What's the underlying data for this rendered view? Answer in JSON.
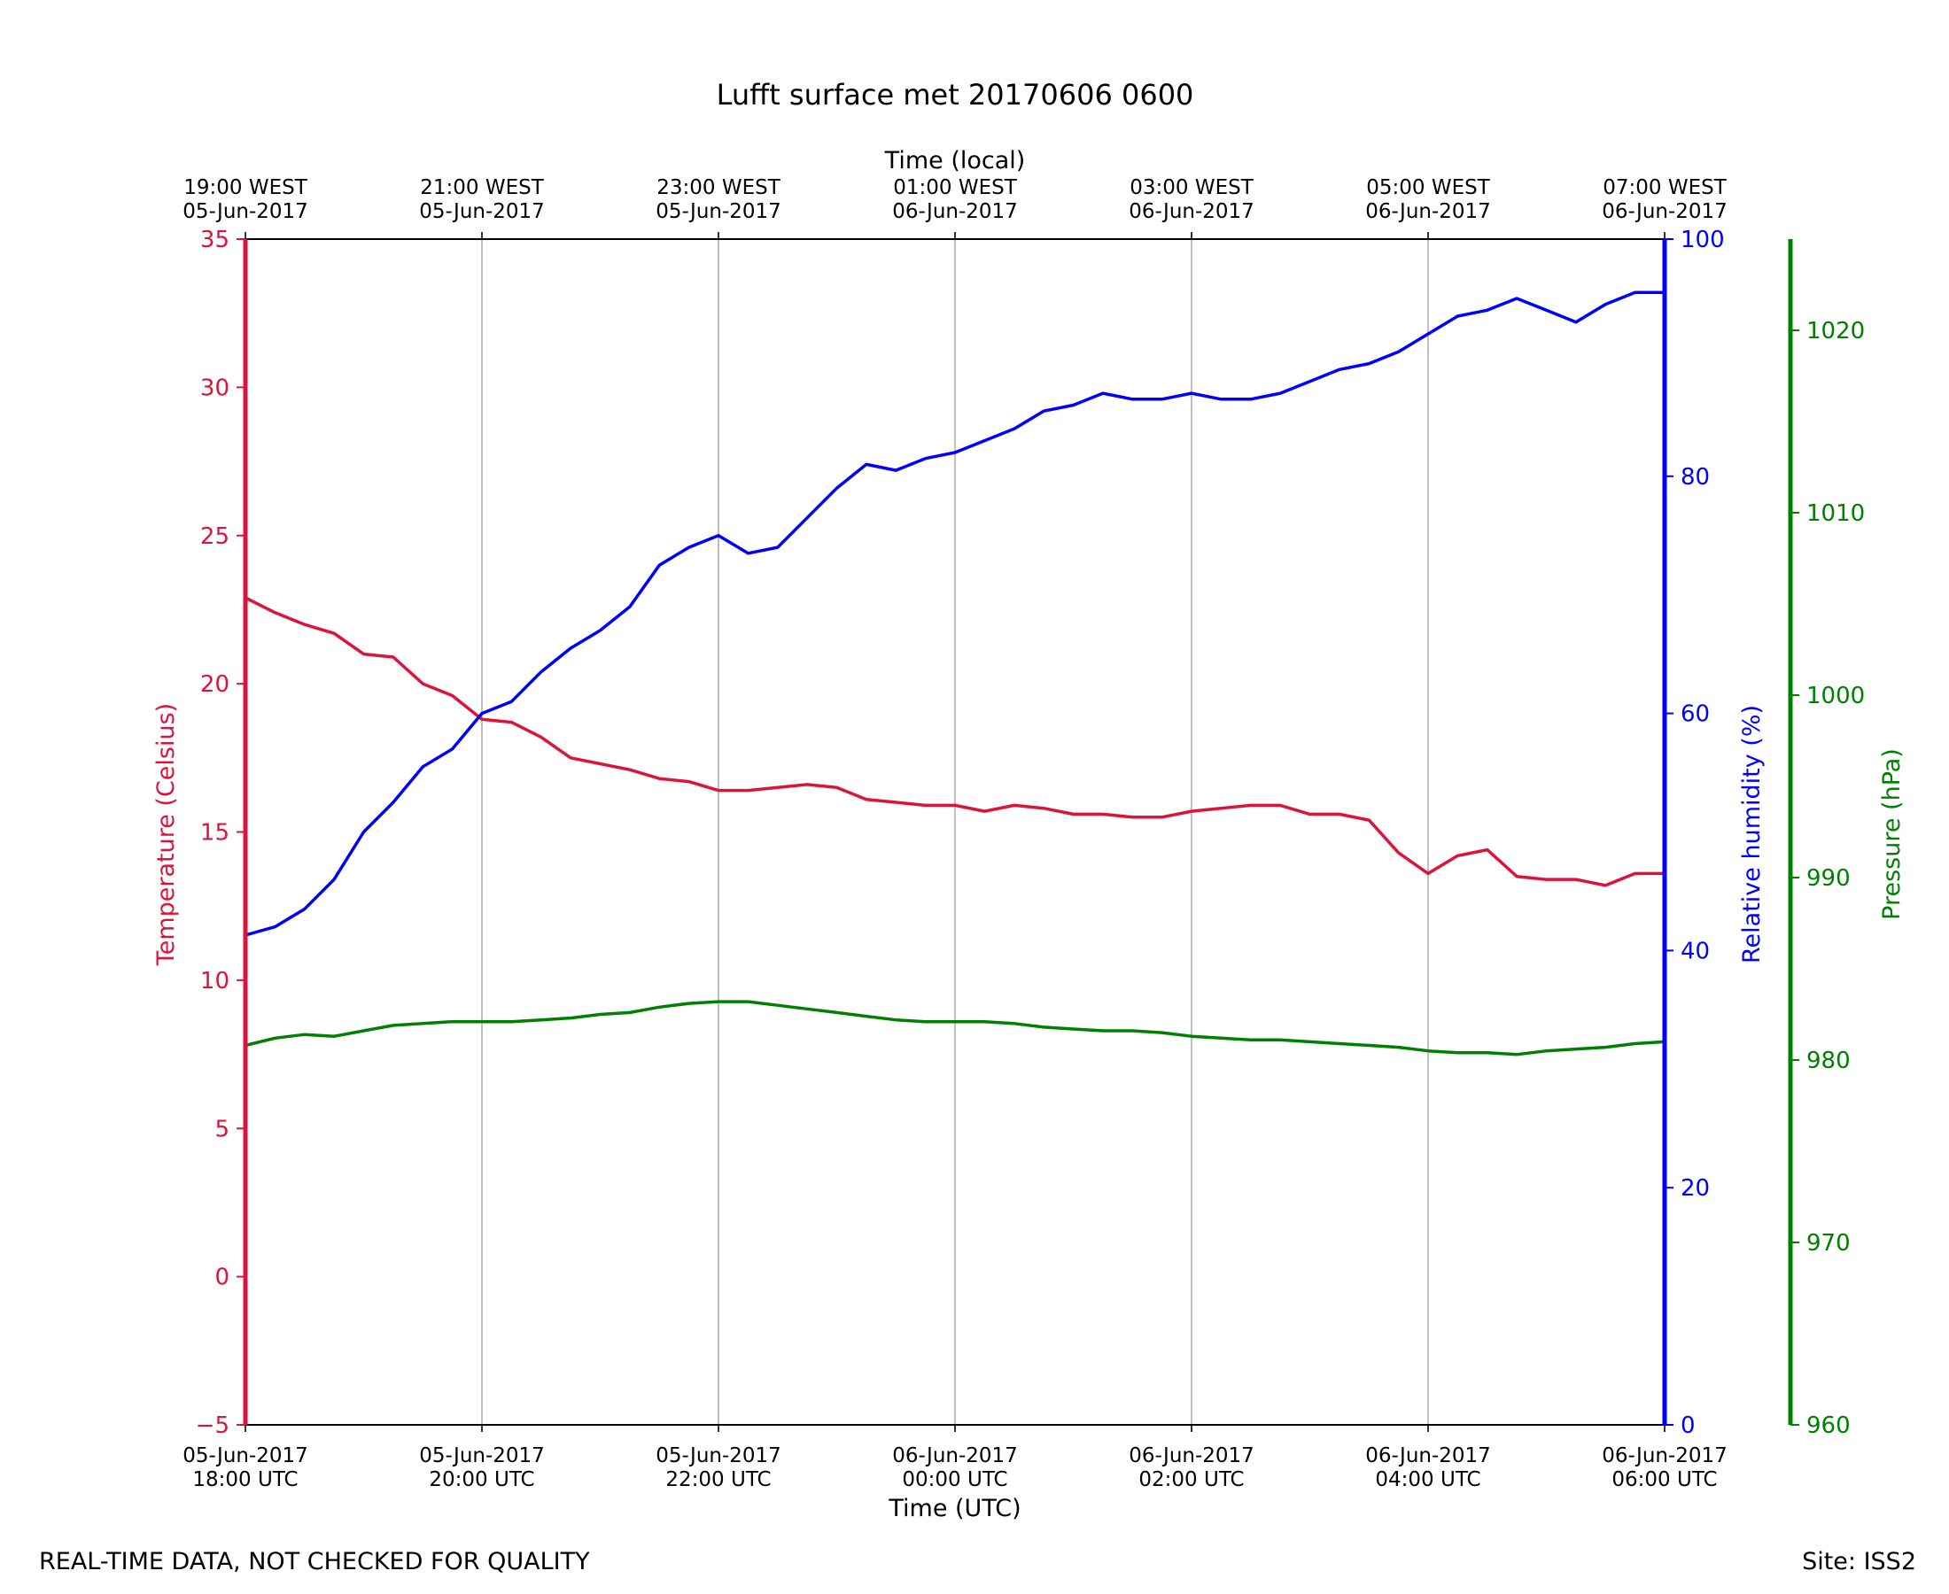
{
  "chart_data": {
    "type": "line",
    "title": "Lufft surface met 20170606 0600",
    "top_axis_label": "Time (local)",
    "xlabel": "Time (UTC)",
    "ylabel_left": "Temperature (Celsius)",
    "ylabel_right": "Relative humidity (%)",
    "ylabel_right2": "Pressure (hPa)",
    "x_range_hours_utc": [
      18,
      30
    ],
    "ylim_temperature": [
      -5,
      35
    ],
    "ylim_humidity": [
      0,
      100
    ],
    "ylim_pressure": [
      960,
      1025
    ],
    "grid": "vertical lines at x ticks",
    "x_ticks": [
      {
        "hour": 18,
        "bottom_date": "05-Jun-2017",
        "bottom_time": "18:00 UTC",
        "top_time": "19:00 WEST",
        "top_date": "05-Jun-2017"
      },
      {
        "hour": 20,
        "bottom_date": "05-Jun-2017",
        "bottom_time": "20:00 UTC",
        "top_time": "21:00 WEST",
        "top_date": "05-Jun-2017"
      },
      {
        "hour": 22,
        "bottom_date": "05-Jun-2017",
        "bottom_time": "22:00 UTC",
        "top_time": "23:00 WEST",
        "top_date": "05-Jun-2017"
      },
      {
        "hour": 24,
        "bottom_date": "06-Jun-2017",
        "bottom_time": "00:00 UTC",
        "top_time": "01:00 WEST",
        "top_date": "06-Jun-2017"
      },
      {
        "hour": 26,
        "bottom_date": "06-Jun-2017",
        "bottom_time": "02:00 UTC",
        "top_time": "03:00 WEST",
        "top_date": "06-Jun-2017"
      },
      {
        "hour": 28,
        "bottom_date": "06-Jun-2017",
        "bottom_time": "04:00 UTC",
        "top_time": "05:00 WEST",
        "top_date": "06-Jun-2017"
      },
      {
        "hour": 30,
        "bottom_date": "06-Jun-2017",
        "bottom_time": "06:00 UTC",
        "top_time": "07:00 WEST",
        "top_date": "06-Jun-2017"
      }
    ],
    "temperature_ticks": [
      "−5",
      "0",
      "5",
      "10",
      "15",
      "20",
      "25",
      "30",
      "35"
    ],
    "humidity_ticks": [
      "0",
      "20",
      "40",
      "60",
      "80",
      "100"
    ],
    "pressure_ticks": [
      "960",
      "970",
      "980",
      "990",
      "1000",
      "1010",
      "1020"
    ],
    "colors": {
      "temperature": "#dc143c",
      "humidity": "#0000ff",
      "pressure": "#008000",
      "grid": "#b0b0b0"
    },
    "series": [
      {
        "key": "temperature",
        "axis": "temperature",
        "x": [
          18.0,
          18.25,
          18.5,
          18.75,
          19.0,
          19.25,
          19.5,
          19.75,
          20.0,
          20.25,
          20.5,
          20.75,
          21.0,
          21.25,
          21.5,
          21.75,
          22.0,
          22.25,
          22.5,
          22.75,
          23.0,
          23.25,
          23.5,
          23.75,
          24.0,
          24.25,
          24.5,
          24.75,
          25.0,
          25.25,
          25.5,
          25.75,
          26.0,
          26.25,
          26.5,
          26.75,
          27.0,
          27.25,
          27.5,
          27.75,
          28.0,
          28.25,
          28.5,
          28.75,
          29.0,
          29.25,
          29.5,
          29.75,
          30.0
        ],
        "y": [
          22.9,
          22.4,
          22.0,
          21.7,
          21.0,
          20.9,
          20.0,
          19.6,
          18.8,
          18.7,
          18.2,
          17.5,
          17.3,
          17.1,
          16.8,
          16.7,
          16.4,
          16.4,
          16.5,
          16.6,
          16.5,
          16.1,
          16.0,
          15.9,
          15.9,
          15.7,
          15.9,
          15.8,
          15.6,
          15.6,
          15.5,
          15.5,
          15.7,
          15.8,
          15.9,
          15.9,
          15.6,
          15.6,
          15.4,
          14.3,
          13.6,
          14.2,
          14.4,
          13.5,
          13.4,
          13.4,
          13.2,
          13.6,
          13.6
        ]
      },
      {
        "key": "humidity",
        "axis": "humidity",
        "x": [
          18.0,
          18.25,
          18.5,
          18.75,
          19.0,
          19.25,
          19.5,
          19.75,
          20.0,
          20.25,
          20.5,
          20.75,
          21.0,
          21.25,
          21.5,
          21.75,
          22.0,
          22.25,
          22.5,
          22.75,
          23.0,
          23.25,
          23.5,
          23.75,
          24.0,
          24.25,
          24.5,
          24.75,
          25.0,
          25.25,
          25.5,
          25.75,
          26.0,
          26.25,
          26.5,
          26.75,
          27.0,
          27.25,
          27.5,
          27.75,
          28.0,
          28.25,
          28.5,
          28.75,
          29.0,
          29.25,
          29.5,
          29.75,
          30.0
        ],
        "y": [
          41.3,
          42.0,
          43.5,
          46.0,
          50.0,
          52.5,
          55.5,
          57.0,
          60.0,
          61.0,
          63.5,
          65.5,
          67.0,
          69.0,
          72.5,
          74.0,
          75.0,
          73.5,
          74.0,
          76.5,
          79.0,
          81.0,
          80.5,
          81.5,
          82.0,
          83.0,
          84.0,
          85.5,
          86.0,
          87.0,
          86.5,
          86.5,
          87.0,
          86.5,
          86.5,
          87.0,
          88.0,
          89.0,
          89.5,
          90.5,
          92.0,
          93.5,
          94.0,
          95.0,
          94.0,
          93.0,
          94.5,
          95.5,
          95.5
        ]
      },
      {
        "key": "pressure",
        "axis": "pressure",
        "x": [
          18.0,
          18.25,
          18.5,
          18.75,
          19.0,
          19.25,
          19.5,
          19.75,
          20.0,
          20.25,
          20.5,
          20.75,
          21.0,
          21.25,
          21.5,
          21.75,
          22.0,
          22.25,
          22.5,
          22.75,
          23.0,
          23.25,
          23.5,
          23.75,
          24.0,
          24.25,
          24.5,
          24.75,
          25.0,
          25.25,
          25.5,
          25.75,
          26.0,
          26.25,
          26.5,
          26.75,
          27.0,
          27.25,
          27.5,
          27.75,
          28.0,
          28.25,
          28.5,
          28.75,
          29.0,
          29.25,
          29.5,
          29.75,
          30.0
        ],
        "y": [
          980.8,
          981.2,
          981.4,
          981.3,
          981.6,
          981.9,
          982.0,
          982.1,
          982.1,
          982.1,
          982.2,
          982.3,
          982.5,
          982.6,
          982.9,
          983.1,
          983.2,
          983.2,
          983.0,
          982.8,
          982.6,
          982.4,
          982.2,
          982.1,
          982.1,
          982.1,
          982.0,
          981.8,
          981.7,
          981.6,
          981.6,
          981.5,
          981.3,
          981.2,
          981.1,
          981.1,
          981.0,
          980.9,
          980.8,
          980.7,
          980.5,
          980.4,
          980.4,
          980.3,
          980.5,
          980.6,
          980.7,
          980.9,
          981.0
        ]
      }
    ]
  },
  "footer": {
    "left_note": "REAL-TIME DATA, NOT CHECKED FOR QUALITY",
    "site": "Site: ISS2"
  }
}
